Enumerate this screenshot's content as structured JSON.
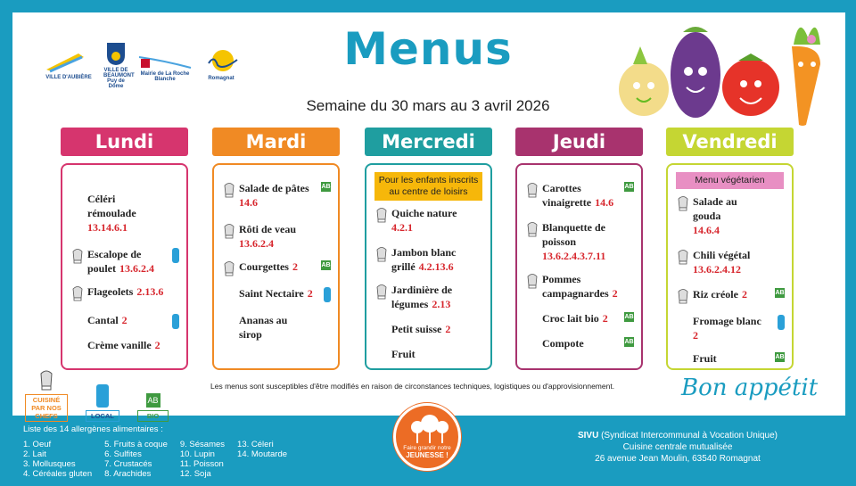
{
  "title": "Menus",
  "week": "Semaine du 30 mars au 3 avril 2026",
  "logos": [
    {
      "name": "Ville d'Aubière",
      "text": "VILLE D'AUBIÈRE"
    },
    {
      "name": "Ville de Beaumont",
      "text": "VILLE DE BEAUMONT Puy de Dôme"
    },
    {
      "name": "Mairie de La Roche Blanche",
      "text": "Mairie de La Roche Blanche"
    },
    {
      "name": "Romagnat",
      "text": "Romagnat"
    }
  ],
  "colors": {
    "frame": "#1a9cc0",
    "lundi": "#d6356e",
    "mardi": "#f08a24",
    "mercredi": "#1f9ea0",
    "jeudi": "#a8336e",
    "vendredi": "#c5d633",
    "allergen": "#d7262d"
  },
  "days": [
    {
      "label": "Lundi",
      "banner": "",
      "items": [
        {
          "name": "Céléri rémoulade",
          "allergens": "13.14.6.1",
          "chef": false,
          "label": "",
          "br": true
        },
        {
          "name": "Escalope de poulet",
          "allergens": "13.6.2.4",
          "chef": true,
          "label": "local",
          "br": false
        },
        {
          "name": "Flageolets",
          "allergens": "2.13.6",
          "chef": true,
          "label": "",
          "br": false
        },
        {
          "name": "Cantal",
          "allergens": "2",
          "chef": false,
          "label": "local",
          "br": false
        },
        {
          "name": "Crème vanille",
          "allergens": "2",
          "chef": false,
          "label": "",
          "br": false
        }
      ]
    },
    {
      "label": "Mardi",
      "banner": "",
      "items": [
        {
          "name": "Salade de pâtes",
          "allergens": "14.6",
          "chef": true,
          "label": "bio",
          "br": true
        },
        {
          "name": "Rôti de veau",
          "allergens": "13.6.2.4",
          "chef": true,
          "label": "",
          "br": true
        },
        {
          "name": "Courgettes",
          "allergens": "2",
          "chef": true,
          "label": "bio",
          "br": false
        },
        {
          "name": "Saint Nectaire",
          "allergens": "2",
          "chef": false,
          "label": "local",
          "br": false
        },
        {
          "name": "Ananas au sirop",
          "allergens": "",
          "chef": false,
          "label": "",
          "br": false
        }
      ]
    },
    {
      "label": "Mercredi",
      "banner": "Pour les enfants inscrits au centre de loisirs",
      "items": [
        {
          "name": "Quiche nature",
          "allergens": "4.2.1",
          "chef": true,
          "label": "",
          "br": true
        },
        {
          "name": "Jambon blanc grillé",
          "allergens": "4.2.13.6",
          "chef": true,
          "label": "",
          "br": false
        },
        {
          "name": "Jardinière de légumes",
          "allergens": "2.13",
          "chef": true,
          "label": "",
          "br": false
        },
        {
          "name": "Petit suisse",
          "allergens": "2",
          "chef": false,
          "label": "",
          "br": false
        },
        {
          "name": "Fruit",
          "allergens": "",
          "chef": false,
          "label": "",
          "br": false
        }
      ]
    },
    {
      "label": "Jeudi",
      "banner": "",
      "items": [
        {
          "name": "Carottes vinaigrette",
          "allergens": "14.6",
          "chef": true,
          "label": "bio",
          "br": false
        },
        {
          "name": "Blanquette de poisson",
          "allergens": "13.6.2.4.3.7.11",
          "chef": true,
          "label": "",
          "br": true
        },
        {
          "name": "Pommes campagnardes",
          "allergens": "2",
          "chef": true,
          "label": "",
          "br": false
        },
        {
          "name": "Croc lait bio",
          "allergens": "2",
          "chef": false,
          "label": "bio",
          "br": false
        },
        {
          "name": "Compote",
          "allergens": "",
          "chef": false,
          "label": "bio",
          "br": false
        }
      ]
    },
    {
      "label": "Vendredi",
      "banner": "Menu végétarien",
      "items": [
        {
          "name": "Salade au gouda",
          "allergens": "14.6.4",
          "chef": true,
          "label": "",
          "br": true
        },
        {
          "name": "Chili végétal",
          "allergens": "13.6.2.4.12",
          "chef": true,
          "label": "",
          "br": true
        },
        {
          "name": "Riz créole",
          "allergens": "2",
          "chef": true,
          "label": "bio",
          "br": false
        },
        {
          "name": "Fromage blanc",
          "allergens": "2",
          "chef": false,
          "label": "local",
          "br": true
        },
        {
          "name": "Fruit",
          "allergens": "",
          "chef": false,
          "label": "bio",
          "br": false
        }
      ]
    }
  ],
  "legend": {
    "chef": "CUISINÉ PAR NOS CHEFS",
    "local": "LOCAL",
    "bio": "BIO",
    "bio_logo": "AB"
  },
  "note": "Les menus sont susceptibles d'être modifiés en raison de circonstances techniques, logistiques ou d'approvisionnement.",
  "bon_appetit": "Bon appétit",
  "allergens": {
    "title": "Liste des 14 allergènes alimentaires :",
    "columns": [
      [
        "1. Oeuf",
        "2. Lait",
        "3. Mollusques",
        "4. Céréales gluten"
      ],
      [
        "5. Fruits à coque",
        "6. Sulfites",
        "7. Crustacés",
        "8. Arachides"
      ],
      [
        "9. Sésames",
        "10. Lupin",
        "11. Poisson",
        "12. Soja"
      ],
      [
        "13. Céleri",
        "14. Moutarde"
      ]
    ]
  },
  "badge": {
    "line1": "Faire grandir notre",
    "line2": "JEUNESSE !"
  },
  "sivu": {
    "bold": "SIVU",
    "rest": " (Syndicat Intercommunal à Vocation Unique)",
    "line2": "Cuisine centrale mutualisée",
    "line3": "26 avenue Jean Moulin, 63540 Romagnat"
  }
}
